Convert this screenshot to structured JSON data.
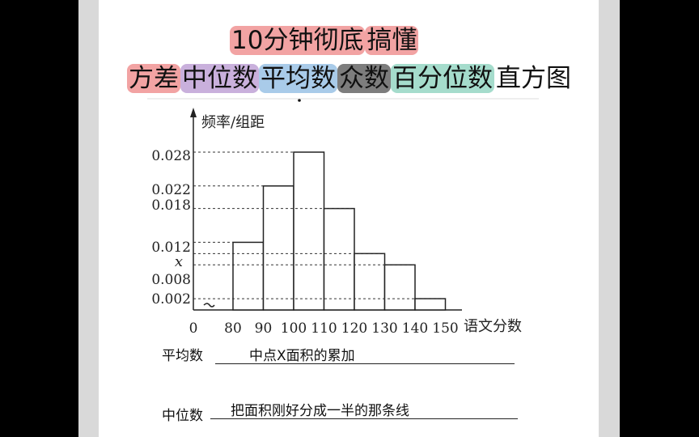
{
  "header": {
    "line1": [
      {
        "text": "10分钟彻底",
        "hl": "red"
      },
      {
        "text": "搞懂",
        "hl": "red"
      }
    ],
    "line2": [
      {
        "text": "方差",
        "hl": "red"
      },
      {
        "text": "中位数",
        "hl": "purple"
      },
      {
        "text": "平均数",
        "hl": "blue"
      },
      {
        "text": "众数",
        "hl": "gray"
      },
      {
        "text": "百分位数",
        "hl": "teal"
      },
      {
        "text": "直方图",
        "hl": ""
      }
    ]
  },
  "chart_data": {
    "type": "bar",
    "ylabel": "频率/组距",
    "xlabel": "语文分数",
    "categories": [
      "80-90",
      "90-100",
      "100-110",
      "110-120",
      "120-130",
      "130-140",
      "140-150"
    ],
    "bins": [
      80,
      90,
      100,
      110,
      120,
      130,
      140,
      150
    ],
    "values": [
      0.012,
      0.022,
      0.028,
      0.018,
      "x",
      0.008,
      0.002
    ],
    "x_value_estimate": 0.01,
    "x_ticks": [
      "0",
      "80",
      "90",
      "100",
      "110",
      "120",
      "130",
      "140",
      "150"
    ],
    "y_ticks": [
      "0.028",
      "0.022",
      "0.018",
      "0.012",
      "x",
      "0.008",
      "0.002"
    ],
    "y_tick_values": [
      0.028,
      0.022,
      0.018,
      0.012,
      0.01,
      0.008,
      0.002
    ],
    "ylim": [
      0,
      0.032
    ],
    "axis_break": true,
    "dashed_guides": true
  },
  "annotations": {
    "mean": {
      "label": "平均数",
      "value": "中点X面积的累加"
    },
    "median": {
      "label": "中位数",
      "value": "把面积刚好分成一半的那条线"
    }
  }
}
